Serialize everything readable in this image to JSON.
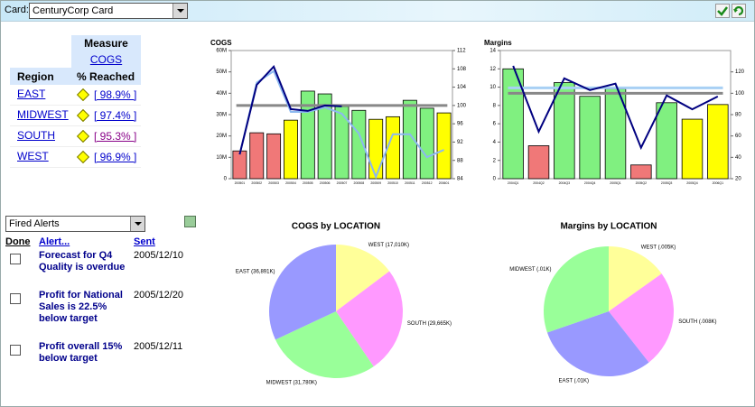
{
  "toolbar": {
    "card_label": "Card:",
    "card_value": "CenturyCorp Card"
  },
  "scorecard": {
    "measure_header": "Measure",
    "measure": "COGS",
    "region_header": "Region",
    "reached_header": "% Reached",
    "rows": [
      {
        "region": "EAST",
        "reached": "[ 98.9% ]"
      },
      {
        "region": "MIDWEST",
        "reached": "[ 97.4% ]"
      },
      {
        "region": "SOUTH",
        "reached": "[ 95.3% ]"
      },
      {
        "region": "WEST",
        "reached": "[ 96.9% ]"
      }
    ]
  },
  "alerts": {
    "filter": "Fired Alerts",
    "columns": [
      "Done",
      "Alert...",
      "Sent"
    ],
    "rows": [
      {
        "alert": "Forecast for Q4 Quality is overdue",
        "sent": "2005/12/10"
      },
      {
        "alert": "Profit for National Sales is 22.5% below target",
        "sent": "2005/12/20"
      },
      {
        "alert": "Profit overall 15% below target",
        "sent": "2005/12/11"
      }
    ]
  },
  "chart_data": [
    {
      "type": "bar",
      "title": "COGS",
      "categories": [
        "200501",
        "200502",
        "200503",
        "200504",
        "200505",
        "200506",
        "200507",
        "200508",
        "200509",
        "200510",
        "200511",
        "200512",
        "200601"
      ],
      "values": [
        13000000,
        21500000,
        21000000,
        27400000,
        41000000,
        39700000,
        33800000,
        32000000,
        27800000,
        29000000,
        36700000,
        33000000,
        30800000
      ],
      "colors": [
        "#f07878",
        "#f07878",
        "#f07878",
        "#ffff00",
        "#80f080",
        "#80f080",
        "#80f080",
        "#80f080",
        "#ffff00",
        "#ffff00",
        "#80f080",
        "#80f080",
        "#ffff00"
      ],
      "ylim": [
        0,
        60000000
      ],
      "yticks": [
        0,
        {
          "value": 10000000,
          "label": "10M"
        },
        {
          "value": 20000000,
          "label": "20M"
        },
        {
          "value": 30000000,
          "label": "30M"
        },
        {
          "value": 40000000,
          "label": "40M"
        },
        {
          "value": 50000000,
          "label": "50M"
        },
        {
          "value": 60000000,
          "label": "60M"
        }
      ],
      "y2lim": [
        84,
        112
      ],
      "y2ticks": [
        84,
        88,
        92,
        96,
        100,
        104,
        108,
        112
      ],
      "reference_lines": [
        {
          "value": 100,
          "axis": "y2",
          "color": "#888888"
        }
      ],
      "series": [
        {
          "color": "#8cb8f0",
          "axis": "y2",
          "values": [
            89.3,
            105,
            107.5,
            98.6,
            98.6,
            99.6,
            98.2,
            93.9,
            84.4,
            93.7,
            93.7,
            88.7,
            90.3
          ]
        },
        {
          "color": "#000080",
          "axis": "y2",
          "values": [
            89.3,
            104.5,
            108.5,
            99.2,
            98.8,
            100,
            99.8,
            null,
            null,
            null,
            null,
            null,
            null
          ]
        }
      ]
    },
    {
      "type": "bar",
      "title": "Margins",
      "categories": [
        "2004Q1",
        "2004Q2",
        "2004Q3",
        "2004Q4",
        "2005Q1",
        "2005Q2",
        "2005Q3",
        "2005Q4",
        "2006Q1"
      ],
      "values": [
        12,
        3.6,
        10.5,
        9,
        9.8,
        1.5,
        8.3,
        6.5,
        8.1
      ],
      "colors": [
        "#80f080",
        "#f07878",
        "#80f080",
        "#80f080",
        "#80f080",
        "#f07878",
        "#80f080",
        "#ffff00",
        "#ffff00"
      ],
      "ylim": [
        0,
        14
      ],
      "yticks": [
        0,
        2,
        4,
        6,
        8,
        10,
        12,
        14
      ],
      "y2lim": [
        20,
        140
      ],
      "y2ticks": [
        20,
        40,
        60,
        80,
        100,
        120
      ],
      "reference_lines": [
        {
          "value": 105,
          "axis": "y2",
          "color": "#a8d0f4"
        },
        {
          "value": 100,
          "axis": "y2",
          "color": "#888888"
        }
      ],
      "series": [
        {
          "color": "#000080",
          "axis": "y2",
          "values": [
            125.6,
            64,
            114,
            103,
            109,
            49,
            98,
            85,
            97
          ]
        }
      ]
    },
    {
      "type": "pie",
      "title": "COGS by LOCATION",
      "categories": [
        "WEST",
        "SOUTH",
        "MIDWEST",
        "EAST"
      ],
      "values": [
        17010,
        29665,
        31780,
        36891
      ],
      "value_labels": [
        "WEST (17,010K)",
        "SOUTH (29,665K)",
        "MIDWEST (31,780K)",
        "EAST (36,891K)"
      ],
      "colors": [
        "#ffff99",
        "#ff99ff",
        "#99ff99",
        "#9999ff"
      ]
    },
    {
      "type": "pie",
      "title": "Margins by LOCATION",
      "categories": [
        "WEST",
        "SOUTH",
        "EAST",
        "MIDWEST"
      ],
      "values": [
        0.005,
        0.008,
        0.01,
        0.01
      ],
      "value_labels": [
        "WEST (.005K)",
        "SOUTH (.008K)",
        "EAST (.01K)",
        "MIDWEST (.01K)"
      ],
      "colors": [
        "#ffff99",
        "#ff99ff",
        "#9999ff",
        "#99ff99"
      ]
    }
  ]
}
